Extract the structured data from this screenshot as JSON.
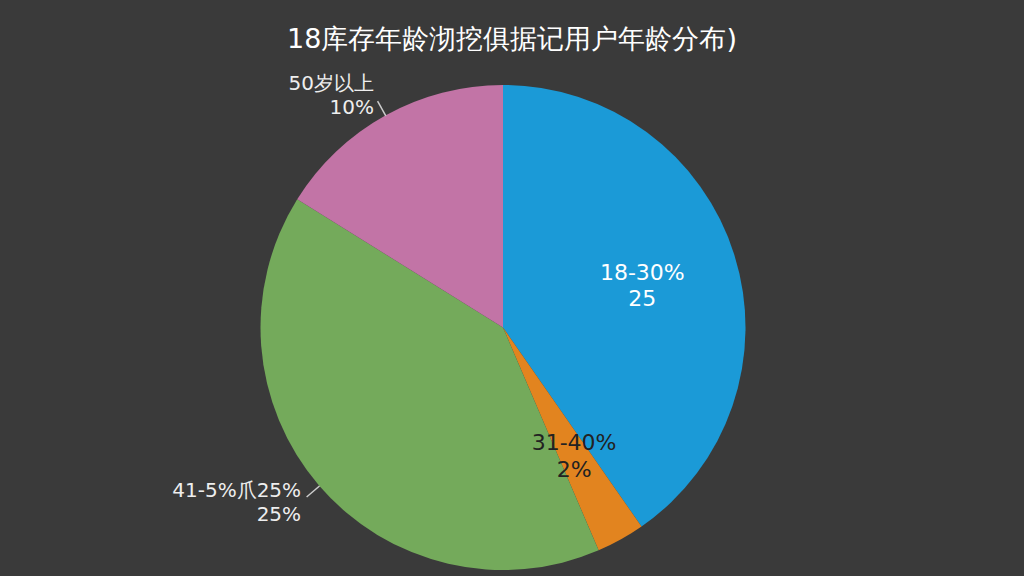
{
  "chart_data": {
    "type": "pie",
    "title": "18库存年龄沏挖俱据记用户年龄分布)",
    "categories": [
      "18-30%",
      "31-40%",
      "41-5%爪25%",
      "50岁以上"
    ],
    "values": [
      25,
      2,
      25,
      10
    ],
    "value_labels": [
      "25",
      "2%",
      "25%",
      "10%"
    ],
    "colors": [
      "#1b9ad7",
      "#e2841f",
      "#74aa5b",
      "#c274a6"
    ],
    "data_labels": true
  }
}
